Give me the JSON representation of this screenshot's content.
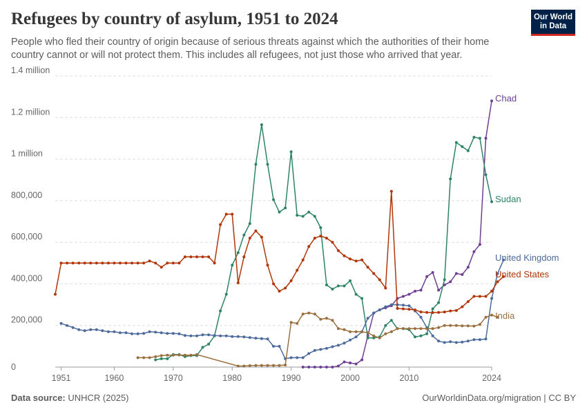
{
  "header": {
    "title": "Refugees by country of asylum, 1951 to 2024",
    "subtitle": "People who fled their country of origin because of serious threats against which the authorities of their home country cannot or will not protect them. This includes all refugees, not just those who arrived that year."
  },
  "logo": {
    "line1": "Our World",
    "line2": "in Data"
  },
  "footer": {
    "source_label": "Data source:",
    "source_value": "UNHCR (2025)",
    "credit": "OurWorldinData.org/migration | CC BY"
  },
  "chart_data": {
    "type": "line",
    "title": "Refugees by country of asylum, 1951 to 2024",
    "xlabel": "",
    "ylabel": "",
    "xlim": [
      1950,
      2024
    ],
    "ylim": [
      0,
      1400000
    ],
    "grid": true,
    "x_ticks": [
      1951,
      1960,
      1970,
      1980,
      1990,
      2000,
      2010,
      2024
    ],
    "y_ticks": [
      0,
      200000,
      400000,
      600000,
      800000,
      1000000,
      1200000,
      1400000
    ],
    "y_tick_labels": [
      "0",
      "200,000",
      "400,000",
      "600,000",
      "800,000",
      "1 million",
      "1.2 million",
      "1.4 million"
    ],
    "series": [
      {
        "name": "Chad",
        "color": "#6d3e91",
        "start_year": 1992,
        "values": [
          0,
          0,
          0,
          0,
          0,
          0,
          5000,
          25000,
          20000,
          15000,
          35000,
          150000,
          260000,
          275000,
          285000,
          295000,
          330000,
          340000,
          350000,
          365000,
          370000,
          435000,
          455000,
          370000,
          395000,
          410000,
          450000,
          445000,
          480000,
          555000,
          590000,
          1100000,
          1280000
        ]
      },
      {
        "name": "Sudan",
        "color": "#2c8465",
        "start_year": 1967,
        "values": [
          35000,
          40000,
          40000,
          60000,
          60000,
          50000,
          55000,
          55000,
          95000,
          110000,
          150000,
          270000,
          350000,
          490000,
          550000,
          635000,
          690000,
          975000,
          1165000,
          975000,
          805000,
          745000,
          765000,
          1035000,
          730000,
          725000,
          745000,
          725000,
          670000,
          395000,
          375000,
          390000,
          390000,
          415000,
          350000,
          330000,
          140000,
          140000,
          145000,
          200000,
          225000,
          185000,
          185000,
          180000,
          145000,
          150000,
          160000,
          280000,
          310000,
          420000,
          905000,
          1080000,
          1060000,
          1040000,
          1105000,
          1100000,
          925000,
          795000
        ]
      },
      {
        "name": "United Kingdom",
        "color": "#4c6a9c",
        "start_year": 1951,
        "values": [
          210000,
          200000,
          190000,
          180000,
          175000,
          180000,
          180000,
          175000,
          170000,
          170000,
          165000,
          165000,
          160000,
          160000,
          162000,
          170000,
          168000,
          165000,
          162000,
          162000,
          160000,
          152000,
          150000,
          150000,
          155000,
          155000,
          152000,
          150000,
          150000,
          147000,
          147000,
          145000,
          142000,
          139000,
          137000,
          135000,
          100000,
          100000,
          40000,
          45000,
          45000,
          45000,
          65000,
          80000,
          85000,
          90000,
          98000,
          105000,
          115000,
          130000,
          145000,
          170000,
          235000,
          260000,
          275000,
          290000,
          300000,
          300000,
          298000,
          295000,
          270000,
          240000,
          190000,
          150000,
          125000,
          118000,
          122000,
          118000,
          120000,
          125000,
          132000,
          132000,
          135000,
          330000,
          450000,
          515000
        ]
      },
      {
        "name": "United States",
        "color": "#b13507",
        "start_year": 1950,
        "values": [
          350000,
          500000,
          500000,
          500000,
          500000,
          500000,
          500000,
          500000,
          500000,
          500000,
          500000,
          500000,
          500000,
          500000,
          500000,
          500000,
          510000,
          500000,
          480000,
          500000,
          500000,
          500000,
          530000,
          530000,
          530000,
          530000,
          530000,
          500000,
          685000,
          735000,
          735000,
          405000,
          530000,
          620000,
          655000,
          625000,
          490000,
          400000,
          365000,
          380000,
          415000,
          465000,
          515000,
          580000,
          620000,
          630000,
          620000,
          600000,
          560000,
          535000,
          520000,
          510000,
          515000,
          480000,
          450000,
          420000,
          380000,
          845000,
          282000,
          280000,
          278000,
          275000,
          265000,
          263000,
          262000,
          263000,
          265000,
          270000,
          272000,
          290000,
          315000,
          340000,
          340000,
          340000,
          365000,
          410000,
          435000
        ]
      },
      {
        "name": "India",
        "color": "#9a6f3d",
        "start_year": 1964,
        "values": [
          45000,
          45000,
          45000,
          50000,
          55000,
          57000,
          57000,
          58000,
          57000,
          57000,
          60000,
          null,
          null,
          null,
          null,
          null,
          null,
          5000,
          5000,
          7000,
          8000,
          8000,
          8000,
          8000,
          8000,
          10000,
          215000,
          210000,
          255000,
          260000,
          255000,
          230000,
          235000,
          225000,
          185000,
          180000,
          170000,
          170000,
          170000,
          165000,
          150000,
          140000,
          160000,
          170000,
          185000,
          185000,
          185000,
          185000,
          185000,
          185000,
          185000,
          190000,
          200000,
          200000,
          200000,
          198000,
          198000,
          197000,
          205000,
          240000,
          250000,
          240000
        ]
      }
    ]
  }
}
